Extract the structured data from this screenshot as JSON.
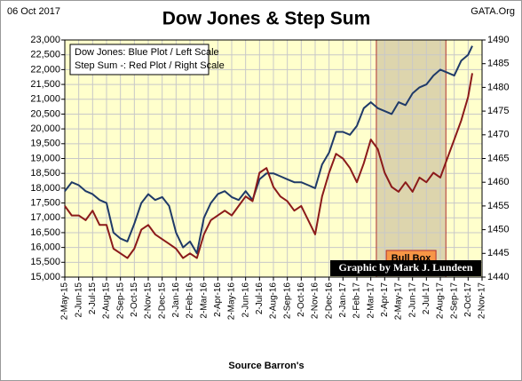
{
  "chart_data": {
    "type": "line",
    "title": "Dow Jones & Step Sum",
    "date_label": "06 Oct 2017",
    "site_label": "GATA.Org",
    "x_axis_label": "Source Barron's",
    "legend": [
      "Dow Jones: Blue Plot / Left Scale",
      "Step Sum -: Red Plot / Right Scale"
    ],
    "credit": "Graphic by Mark J. Lundeen",
    "bull_box": {
      "label": "Bull Box",
      "x_range": [
        22.4,
        27.4
      ]
    },
    "grid": true,
    "xlim": [
      0,
      30
    ],
    "xticks": [
      {
        "value": 0,
        "label": "2-May-15"
      },
      {
        "value": 1,
        "label": "2-Jun-15"
      },
      {
        "value": 2,
        "label": "2-Jul-15"
      },
      {
        "value": 3,
        "label": "2-Aug-15"
      },
      {
        "value": 4,
        "label": "2-Sep-15"
      },
      {
        "value": 5,
        "label": "2-Oct-15"
      },
      {
        "value": 6,
        "label": "2-Nov-15"
      },
      {
        "value": 7,
        "label": "2-Dec-15"
      },
      {
        "value": 8,
        "label": "2-Jan-16"
      },
      {
        "value": 9,
        "label": "2-Feb-16"
      },
      {
        "value": 10,
        "label": "2-Mar-16"
      },
      {
        "value": 11,
        "label": "2-Apr-16"
      },
      {
        "value": 12,
        "label": "2-May-16"
      },
      {
        "value": 13,
        "label": "2-Jun-16"
      },
      {
        "value": 14,
        "label": "2-Jul-16"
      },
      {
        "value": 15,
        "label": "2-Aug-16"
      },
      {
        "value": 16,
        "label": "2-Sep-16"
      },
      {
        "value": 17,
        "label": "2-Oct-16"
      },
      {
        "value": 18,
        "label": "2-Nov-16"
      },
      {
        "value": 19,
        "label": "2-Dec-16"
      },
      {
        "value": 20,
        "label": "2-Jan-17"
      },
      {
        "value": 21,
        "label": "2-Feb-17"
      },
      {
        "value": 22,
        "label": "2-Mar-17"
      },
      {
        "value": 23,
        "label": "2-Apr-17"
      },
      {
        "value": 24,
        "label": "2-May-17"
      },
      {
        "value": 25,
        "label": "2-Jun-17"
      },
      {
        "value": 26,
        "label": "2-Jul-17"
      },
      {
        "value": 27,
        "label": "2-Aug-17"
      },
      {
        "value": 28,
        "label": "2-Sep-17"
      },
      {
        "value": 29,
        "label": "2-Oct-17"
      },
      {
        "value": 30,
        "label": "2-Nov-17"
      }
    ],
    "ylim": [
      15000,
      23000
    ],
    "yticks": [
      {
        "value": 15000,
        "label": "15,000"
      },
      {
        "value": 15500,
        "label": "15,500"
      },
      {
        "value": 16000,
        "label": "16,000"
      },
      {
        "value": 16500,
        "label": "16,500"
      },
      {
        "value": 17000,
        "label": "17,000"
      },
      {
        "value": 17500,
        "label": "17,500"
      },
      {
        "value": 18000,
        "label": "18,000"
      },
      {
        "value": 18500,
        "label": "18,500"
      },
      {
        "value": 19000,
        "label": "19,000"
      },
      {
        "value": 19500,
        "label": "19,500"
      },
      {
        "value": 20000,
        "label": "20,000"
      },
      {
        "value": 20500,
        "label": "20,500"
      },
      {
        "value": 21000,
        "label": "21,000"
      },
      {
        "value": 21500,
        "label": "21,500"
      },
      {
        "value": 22000,
        "label": "22,000"
      },
      {
        "value": 22500,
        "label": "22,500"
      },
      {
        "value": 23000,
        "label": "23,000"
      }
    ],
    "y2lim": [
      1440,
      1490
    ],
    "y2ticks": [
      1440,
      1445,
      1450,
      1455,
      1460,
      1465,
      1470,
      1475,
      1480,
      1485,
      1490
    ],
    "x": [
      0,
      0.5,
      1,
      1.5,
      2,
      2.5,
      3,
      3.5,
      4,
      4.5,
      5,
      5.5,
      6,
      6.5,
      7,
      7.5,
      8,
      8.5,
      9,
      9.5,
      10,
      10.5,
      11,
      11.5,
      12,
      12.5,
      13,
      13.5,
      14,
      14.5,
      15,
      15.5,
      16,
      16.5,
      17,
      17.5,
      18,
      18.5,
      19,
      19.5,
      20,
      20.5,
      21,
      21.5,
      22,
      22.5,
      23,
      23.5,
      24,
      24.5,
      25,
      25.5,
      26,
      26.5,
      27,
      27.5,
      28,
      28.5,
      29,
      29.3
    ],
    "series": [
      {
        "color": "#1f3a68",
        "axis": "y",
        "values": [
          17900,
          18200,
          18100,
          17900,
          17800,
          17600,
          17500,
          16500,
          16300,
          16200,
          16800,
          17500,
          17800,
          17600,
          17700,
          17400,
          16500,
          16000,
          16200,
          15800,
          17000,
          17500,
          17800,
          17900,
          17700,
          17600,
          17900,
          17600,
          18300,
          18500,
          18500,
          18400,
          18300,
          18200,
          18200,
          18100,
          18000,
          18800,
          19200,
          19900,
          19900,
          19800,
          20100,
          20700,
          20900,
          20700,
          20600,
          20500,
          20900,
          20800,
          21200,
          21400,
          21500,
          21800,
          22000,
          21900,
          21800,
          22300,
          22500,
          22800
        ]
      },
      {
        "color": "#8b1a1a",
        "axis": "y2",
        "values": [
          1455,
          1453,
          1453,
          1452,
          1454,
          1451,
          1451,
          1446,
          1445,
          1444,
          1446,
          1450,
          1451,
          1449,
          1448,
          1447,
          1446,
          1444,
          1445,
          1444,
          1449,
          1452,
          1453,
          1454,
          1453,
          1455,
          1457,
          1456,
          1462,
          1463,
          1459,
          1457,
          1456,
          1454,
          1455,
          1452,
          1449,
          1457,
          1462,
          1466,
          1465,
          1463,
          1460,
          1464,
          1469,
          1467,
          1462,
          1459,
          1458,
          1460,
          1458,
          1461,
          1460,
          1462,
          1461,
          1465,
          1469,
          1473,
          1478,
          1483
        ]
      }
    ]
  }
}
